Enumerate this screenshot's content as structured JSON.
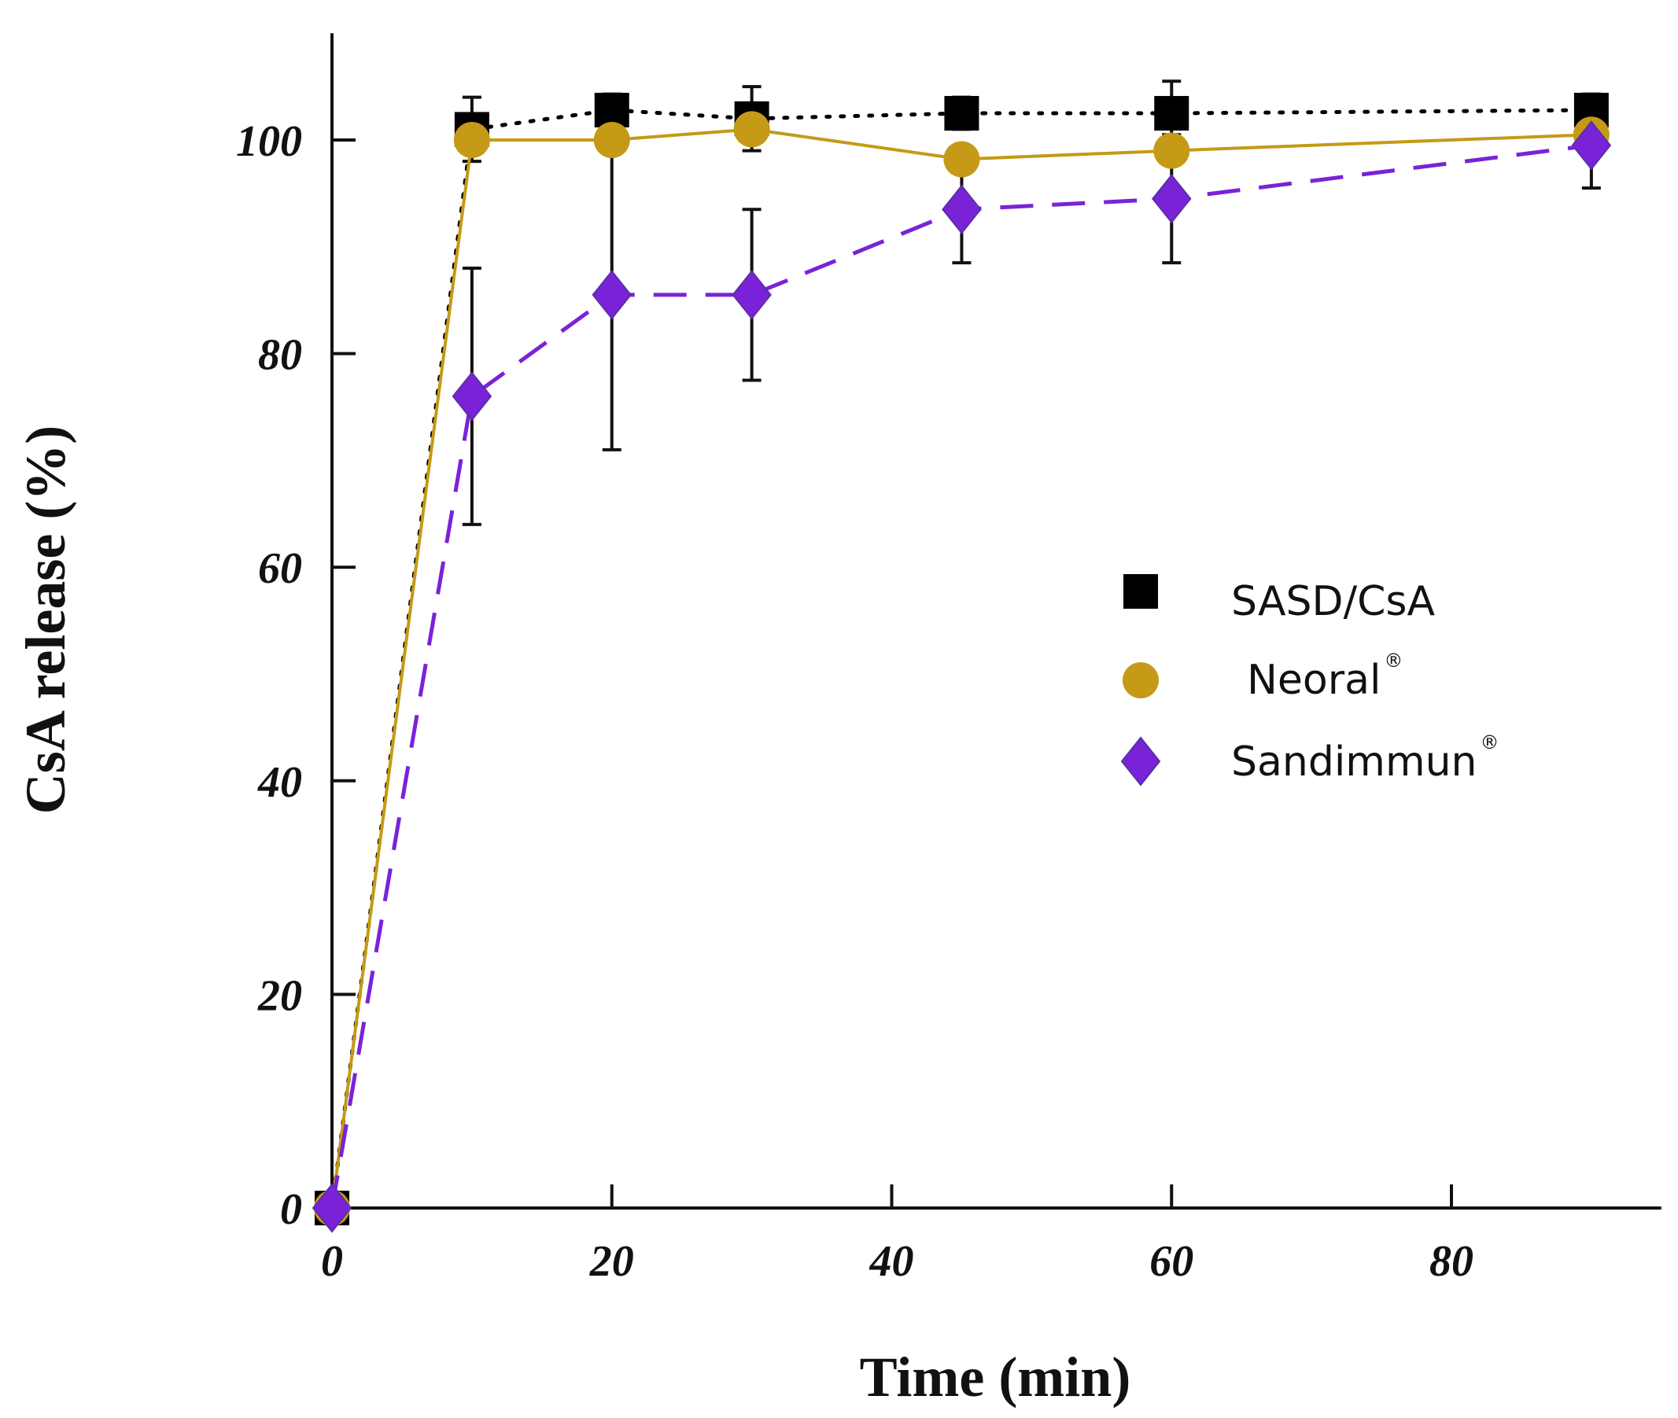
{
  "chart_data": {
    "type": "line",
    "title": "",
    "xlabel": "Time  (min)",
    "ylabel": "CsA release  (%)",
    "xlim": [
      0,
      95
    ],
    "ylim": [
      0,
      110
    ],
    "xticks": [
      0,
      20,
      40,
      60,
      80
    ],
    "yticks": [
      0,
      20,
      40,
      60,
      80,
      100
    ],
    "grid": false,
    "legend_position": "center-right",
    "series": [
      {
        "name": "SASD/CsA",
        "legend_main": "SASD/CsA",
        "legend_sup": "",
        "marker": "square",
        "color": "#000000",
        "line_style": "dotted",
        "x": [
          0,
          10,
          20,
          30,
          45,
          60,
          90
        ],
        "y": [
          0,
          101,
          102.8,
          102,
          102.5,
          102.5,
          102.8
        ],
        "err": [
          0,
          3,
          1.5,
          3,
          1.5,
          3,
          1.5
        ]
      },
      {
        "name": "Neoral®",
        "legend_main": "Neoral",
        "legend_sup": "®",
        "marker": "circle",
        "color": "#c49a16",
        "line_style": "solid",
        "x": [
          0,
          10,
          20,
          30,
          45,
          60,
          90
        ],
        "y": [
          0,
          100,
          100,
          101,
          98.2,
          99,
          100.5
        ],
        "err": [
          0,
          0,
          0,
          0,
          0,
          0,
          0
        ]
      },
      {
        "name": "Sandimmun®",
        "legend_main": "Sandimmun",
        "legend_sup": "®",
        "marker": "diamond",
        "color": "#7a22d8",
        "line_style": "dashed",
        "x": [
          0,
          10,
          20,
          30,
          45,
          60,
          90
        ],
        "y": [
          0,
          76,
          85.5,
          85.5,
          93.5,
          94.5,
          99.5
        ],
        "err": [
          0,
          12,
          14.5,
          8,
          5,
          6,
          4
        ]
      }
    ]
  }
}
